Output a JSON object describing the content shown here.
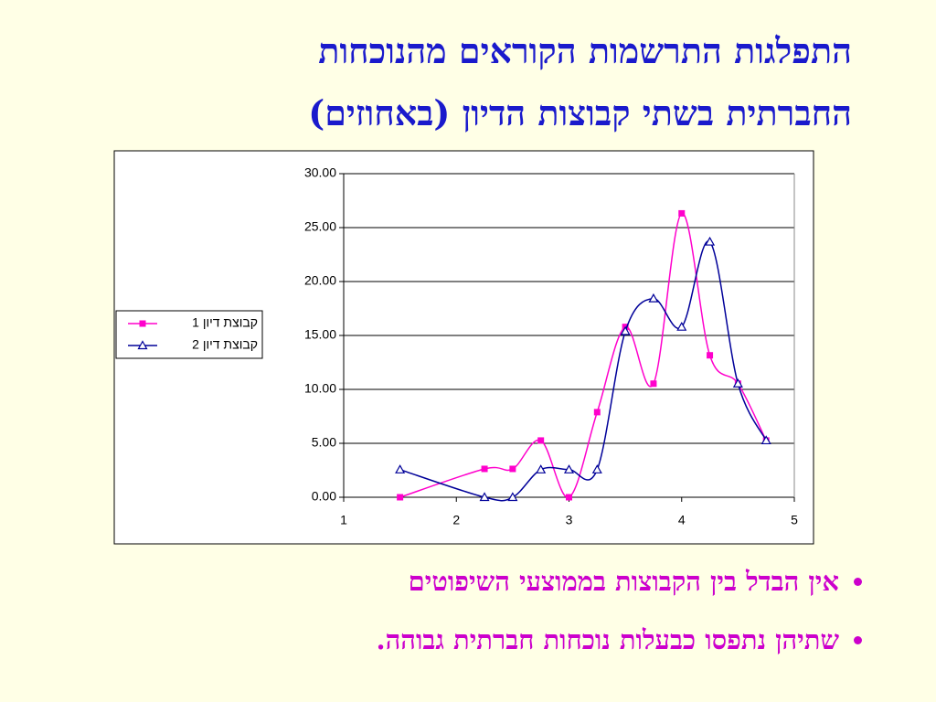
{
  "title": [
    "התפלגות התרשמות הקוראים מהנוכחות",
    "החברתית בשתי קבוצות הדיון (באחוזים)"
  ],
  "chart_data": {
    "type": "line",
    "x": [
      1.5,
      2.25,
      2.5,
      2.75,
      3,
      3.25,
      3.5,
      3.75,
      4,
      4.25,
      4.5,
      4.75
    ],
    "series": [
      {
        "name": "קבוצת דיון 1",
        "color": "#ff00cc",
        "marker": "square",
        "values": [
          0,
          2.63,
          2.63,
          5.26,
          0,
          7.89,
          15.79,
          10.53,
          26.32,
          13.16,
          10.53,
          5.26
        ]
      },
      {
        "name": "קבוצת דיון 2",
        "color": "#000099",
        "marker": "triangle",
        "values": [
          2.56,
          0,
          0,
          2.56,
          2.56,
          2.56,
          15.38,
          18.42,
          15.79,
          23.68,
          10.53,
          5.26
        ]
      }
    ],
    "xlim": [
      1,
      5
    ],
    "xticks": [
      1,
      2,
      3,
      4,
      5
    ],
    "ylim": [
      0,
      30
    ],
    "yticks": [
      {
        "value": 0,
        "label": "0.00"
      },
      {
        "value": 5,
        "label": "5.00"
      },
      {
        "value": 10,
        "label": "10.00"
      },
      {
        "value": 15,
        "label": "15.00"
      },
      {
        "value": 20,
        "label": "20.00"
      },
      {
        "value": 25,
        "label": "25.00"
      },
      {
        "value": 30,
        "label": "30.00"
      }
    ],
    "grid": true,
    "smooth": true,
    "legend": "left"
  },
  "bullets": [
    "אין הבדל בין הקבוצות בממוצעי השיפוטים",
    "שתיהן נתפסו כבעלות נוכחות חברתית גבוהה."
  ]
}
